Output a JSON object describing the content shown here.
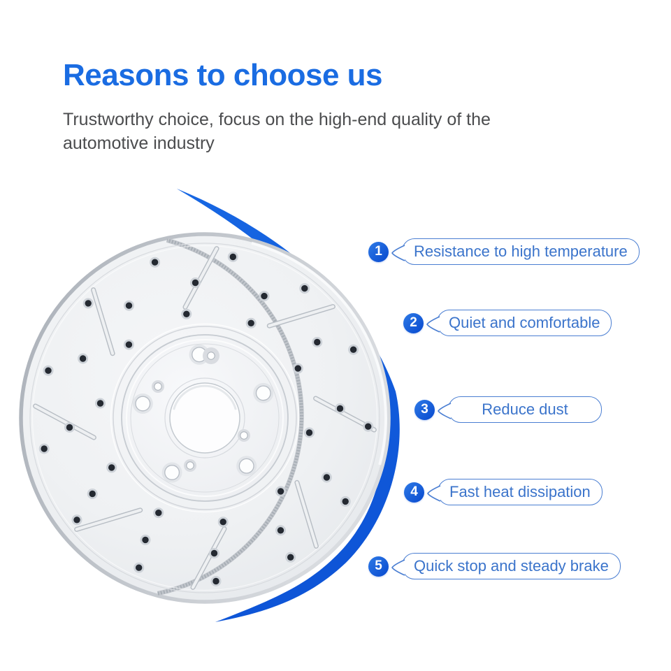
{
  "header": {
    "title": "Reasons to choose us",
    "subtitle_line1": "Trustworthy choice, focus on the high-end quality of the",
    "subtitle_line2": "automotive industry"
  },
  "features": [
    {
      "number": "1",
      "label": "Resistance to high temperature"
    },
    {
      "number": "2",
      "label": "Quiet and comfortable"
    },
    {
      "number": "3",
      "label": "Reduce dust"
    },
    {
      "number": "4",
      "label": "Fast heat dissipation"
    },
    {
      "number": "5",
      "label": "Quick stop and steady brake"
    }
  ],
  "illustration": {
    "name": "drilled-slotted-brake-rotor-with-blue-swoosh"
  },
  "colors": {
    "title_blue": "#1a6ce2",
    "subtitle_gray": "#4b4c4e",
    "swoosh_blue": "#1360dd",
    "badge_blue": "#0d50d2",
    "bubble_border_blue": "#4a7ed2",
    "bubble_text_blue": "#3b74cb"
  }
}
